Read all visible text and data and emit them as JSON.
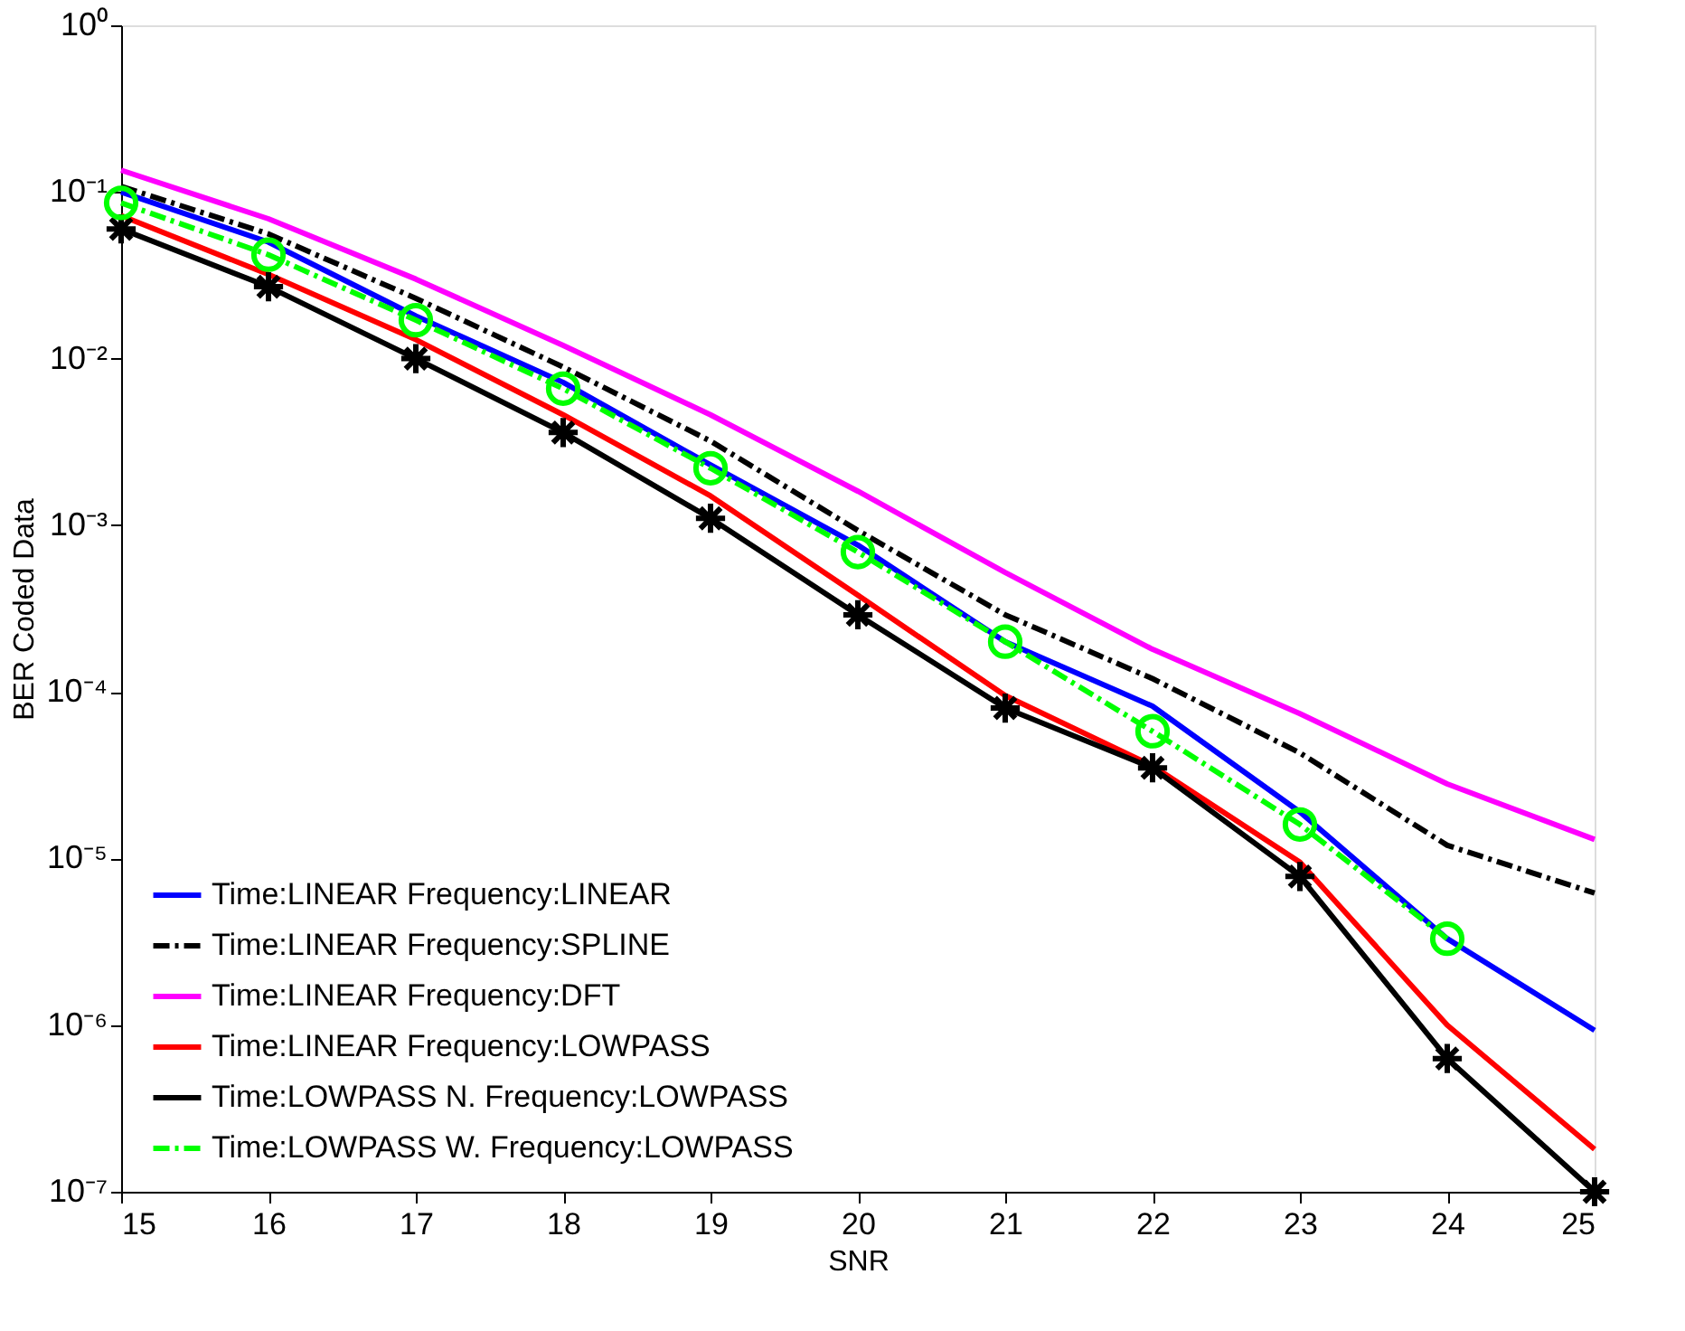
{
  "chart_data": {
    "type": "line",
    "xlabel": "SNR",
    "ylabel": "BER Coded Data",
    "x": [
      15,
      16,
      17,
      18,
      19,
      20,
      21,
      22,
      23,
      24,
      25
    ],
    "series": [
      {
        "name": "Time:LINEAR Frequency:LINEAR",
        "color": "#0000ff",
        "line_style": "solid",
        "marker": "none",
        "values": [
          0.1,
          0.05,
          0.018,
          0.0072,
          0.0023,
          0.00076,
          0.0002,
          8.2e-05,
          1.9e-05,
          3.3e-06,
          9.3e-07
        ]
      },
      {
        "name": "Time:LINEAR Frequency:SPLINE",
        "color": "#000000",
        "line_style": "dashdot",
        "marker": "none",
        "values": [
          0.108,
          0.056,
          0.023,
          0.0089,
          0.0032,
          0.00093,
          0.00029,
          0.00012,
          4.3e-05,
          1.2e-05,
          6.2e-06
        ]
      },
      {
        "name": "Time:LINEAR Frequency:DFT",
        "color": "#ff00ff",
        "line_style": "solid",
        "marker": "none",
        "values": [
          0.135,
          0.069,
          0.03,
          0.012,
          0.0046,
          0.0016,
          0.00052,
          0.00018,
          7.4e-05,
          2.8e-05,
          1.3e-05
        ]
      },
      {
        "name": "Time:LINEAR Frequency:LOWPASS",
        "color": "#ff0000",
        "line_style": "solid",
        "marker": "none",
        "values": [
          0.072,
          0.032,
          0.013,
          0.0046,
          0.0015,
          0.00038,
          9.5e-05,
          3.6e-05,
          9.5e-06,
          1e-06,
          1.8e-07
        ]
      },
      {
        "name": "Time:LOWPASS N. Frequency:LOWPASS",
        "color": "#000000",
        "line_style": "solid",
        "marker": "cross",
        "values": [
          0.06,
          0.027,
          0.01,
          0.0036,
          0.0011,
          0.00029,
          8e-05,
          3.5e-05,
          7.8e-06,
          6.3e-07,
          1e-07
        ]
      },
      {
        "name": "Time:LOWPASS W. Frequency:LOWPASS",
        "color": "#00ff00",
        "line_style": "dashdot",
        "marker": "circle",
        "values": [
          0.086,
          0.042,
          0.017,
          0.0066,
          0.0022,
          0.00069,
          0.0002,
          5.8e-05,
          1.6e-05,
          3.3e-06,
          null
        ]
      }
    ],
    "log": true,
    "xlim": [
      15,
      25
    ],
    "xticks": [
      15,
      16,
      17,
      18,
      19,
      20,
      21,
      22,
      23,
      24,
      25
    ],
    "ylim": [
      1e-07,
      1
    ],
    "yticks": [
      {
        "value": 1e-07,
        "label": "10⁻⁷"
      },
      {
        "value": 1e-06,
        "label": "10⁻⁶"
      },
      {
        "value": 1e-05,
        "label": "10⁻⁵"
      },
      {
        "value": 0.0001,
        "label": "10⁻⁴"
      },
      {
        "value": 0.001,
        "label": "10⁻³"
      },
      {
        "value": 0.01,
        "label": "10⁻²"
      },
      {
        "value": 0.1,
        "label": "10⁻¹"
      },
      {
        "value": 1,
        "label": "10⁰"
      }
    ],
    "grid": false,
    "legend": "bottom left"
  }
}
